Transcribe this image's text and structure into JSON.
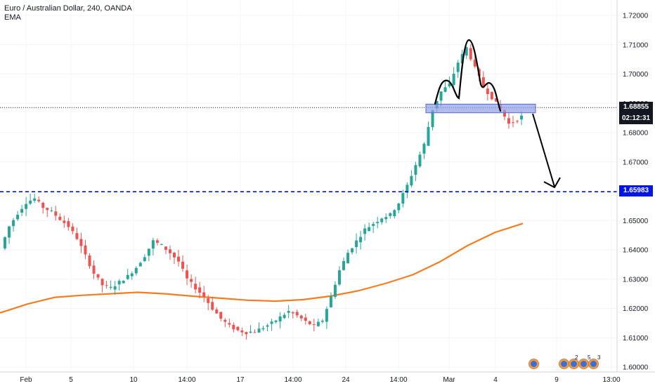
{
  "legend": {
    "title": "Euro / Australian Dollar, 240, OANDA",
    "indicator": "EMA"
  },
  "price_labels": {
    "current_price": "1.68855",
    "countdown": "02:12:31",
    "support_level": "1.65983"
  },
  "colors": {
    "up_candle": "#26a69a",
    "down_candle": "#ef5350",
    "ema": "#f57c1f",
    "support_line": "#0015e6",
    "resistance_box": "#8f9ee8",
    "drawing": "#000000",
    "axis_text": "#131722"
  },
  "events": {
    "icons": [
      "economic-event-icon",
      "economic-event-icon",
      "economic-event-icon",
      "economic-event-icon",
      "economic-event-icon"
    ],
    "labels": [
      "2",
      "5",
      "3"
    ]
  },
  "chart_data": {
    "type": "candlestick",
    "title": "Euro / Australian Dollar, 240, OANDA",
    "ylim": [
      1.598,
      1.725
    ],
    "y_ticks": [
      1.6,
      1.61,
      1.62,
      1.63,
      1.64,
      1.65,
      1.66,
      1.67,
      1.68,
      1.69,
      1.7,
      1.71,
      1.72
    ],
    "x_ticks": [
      "Feb",
      "5",
      "10",
      "14:00",
      "17",
      "14:00",
      "24",
      "14:00",
      "Mar",
      "4",
      "9",
      "13:00"
    ],
    "price_close": [
      1.6405,
      1.648,
      1.6525,
      1.6562,
      1.6575,
      1.6545,
      1.653,
      1.6505,
      1.648,
      1.644,
      1.638,
      1.632,
      1.628,
      1.627,
      1.629,
      1.631,
      1.634,
      1.638,
      1.643,
      1.6415,
      1.639,
      1.636,
      1.63,
      1.627,
      1.624,
      1.62,
      1.6165,
      1.614,
      1.6125,
      1.6118,
      1.6122,
      1.6135,
      1.615,
      1.617,
      1.619,
      1.6175,
      1.6155,
      1.614,
      1.616,
      1.624,
      1.633,
      1.639,
      1.643,
      1.647,
      1.649,
      1.651,
      1.652,
      1.656,
      1.662,
      1.669,
      1.676,
      1.688,
      1.694,
      1.6965,
      1.704,
      1.709,
      1.702,
      1.6955,
      1.692,
      1.688,
      1.683,
      1.6845,
      1.6865
    ],
    "ema": {
      "name": "EMA",
      "values": [
        1.6185,
        1.6215,
        1.6238,
        1.6245,
        1.625,
        1.6255,
        1.625,
        1.6242,
        1.6235,
        1.6228,
        1.6225,
        1.623,
        1.6242,
        1.626,
        1.6285,
        1.6315,
        1.636,
        1.6415,
        1.646,
        1.649
      ]
    },
    "support_level": 1.65983,
    "current_price": 1.68855,
    "resistance_zone": [
      1.6875,
      1.689
    ],
    "pattern": "head-and-shoulders",
    "projection": "down to 1.6598"
  }
}
